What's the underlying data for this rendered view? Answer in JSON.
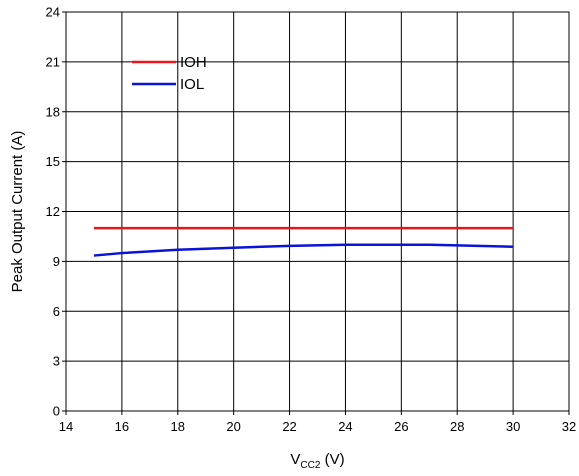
{
  "chart_data": {
    "type": "line",
    "xlabel": {
      "main": "V",
      "sub": "CC2",
      "suffix": " (V)"
    },
    "ylabel": "Peak Output Current (A)",
    "xlim": [
      14,
      32
    ],
    "ylim": [
      0,
      24
    ],
    "xticks": [
      14,
      16,
      18,
      20,
      22,
      24,
      26,
      28,
      30,
      32
    ],
    "yticks": [
      0,
      3,
      6,
      9,
      12,
      15,
      18,
      21,
      24
    ],
    "grid": true,
    "legend_position": "top-left",
    "series": [
      {
        "name": "IOH",
        "color": "#e8161c",
        "x": [
          15,
          18,
          21,
          24,
          27,
          30
        ],
        "y": [
          11.0,
          11.0,
          11.0,
          11.0,
          11.0,
          11.0
        ]
      },
      {
        "name": "IOL",
        "color": "#0a14d8",
        "x": [
          15,
          16,
          18,
          20,
          21,
          22,
          24,
          26,
          27,
          28,
          30
        ],
        "y": [
          9.35,
          9.5,
          9.7,
          9.82,
          9.88,
          9.93,
          10.0,
          10.0,
          10.0,
          9.96,
          9.88
        ]
      }
    ]
  }
}
